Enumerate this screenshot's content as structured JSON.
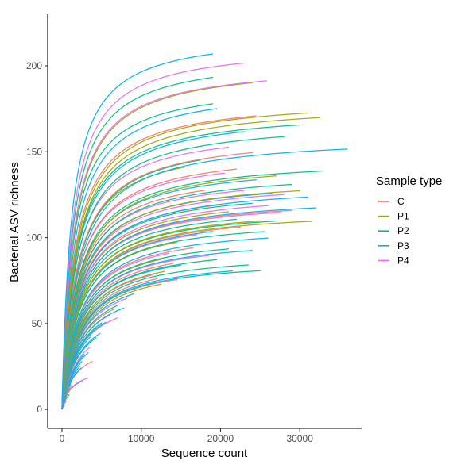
{
  "chart_data": {
    "type": "line",
    "title": "",
    "xlabel": "Sequence count",
    "ylabel": "Bacterial ASV richness",
    "xlim": [
      -1800,
      37800
    ],
    "ylim": [
      -11,
      230
    ],
    "x_ticks": [
      0,
      10000,
      20000,
      30000
    ],
    "x_tick_labels": [
      "0",
      "10000",
      "20000",
      "30000"
    ],
    "y_ticks": [
      0,
      50,
      100,
      150,
      200
    ],
    "y_tick_labels": [
      "0",
      "50",
      "100",
      "150",
      "200"
    ],
    "grid": false,
    "legend": {
      "title": "Sample type",
      "placement": "right",
      "entries": [
        {
          "label": "C",
          "color": "#F8766D"
        },
        {
          "label": "P1",
          "color": "#A3A500"
        },
        {
          "label": "P2",
          "color": "#00BF7D"
        },
        {
          "label": "P3",
          "color": "#00B0F6"
        },
        {
          "label": "P4",
          "color": "#E76BF3"
        }
      ]
    },
    "curve_model": "y = max_richness * x / (x + half_saturation_count)",
    "series": [
      {
        "group": "P3",
        "max_richness": 220,
        "half_saturation_count": 1200,
        "max_count": 19000
      },
      {
        "group": "P4",
        "max_richness": 213,
        "half_saturation_count": 1300,
        "max_count": 23000
      },
      {
        "group": "P2",
        "max_richness": 207,
        "half_saturation_count": 1350,
        "max_count": 19000
      },
      {
        "group": "P1",
        "max_richness": 202,
        "half_saturation_count": 1500,
        "max_count": 24000
      },
      {
        "group": "P4",
        "max_richness": 202,
        "half_saturation_count": 1450,
        "max_count": 25800
      },
      {
        "group": "P2",
        "max_richness": 191,
        "half_saturation_count": 1400,
        "max_count": 19000
      },
      {
        "group": "P3",
        "max_richness": 189,
        "half_saturation_count": 1550,
        "max_count": 19500
      },
      {
        "group": "C",
        "max_richness": 182,
        "half_saturation_count": 1600,
        "max_count": 24500
      },
      {
        "group": "P1",
        "max_richness": 182,
        "half_saturation_count": 1700,
        "max_count": 31000
      },
      {
        "group": "P1",
        "max_richness": 179,
        "half_saturation_count": 1750,
        "max_count": 32500
      },
      {
        "group": "P2",
        "max_richness": 175,
        "half_saturation_count": 1700,
        "max_count": 30000
      },
      {
        "group": "P3",
        "max_richness": 174,
        "half_saturation_count": 1750,
        "max_count": 23000
      },
      {
        "group": "P2",
        "max_richness": 169,
        "half_saturation_count": 1800,
        "max_count": 28000
      },
      {
        "group": "P4",
        "max_richness": 165,
        "half_saturation_count": 1700,
        "max_count": 21000
      },
      {
        "group": "P2",
        "max_richness": 161,
        "half_saturation_count": 1900,
        "max_count": 17500
      },
      {
        "group": "C",
        "max_richness": 161,
        "half_saturation_count": 1850,
        "max_count": 24000
      },
      {
        "group": "P3",
        "max_richness": 160,
        "half_saturation_count": 2000,
        "max_count": 36000
      },
      {
        "group": "P1",
        "max_richness": 157,
        "half_saturation_count": 1750,
        "max_count": 15500
      },
      {
        "group": "C",
        "max_richness": 152,
        "half_saturation_count": 1900,
        "max_count": 22000
      },
      {
        "group": "P4",
        "max_richness": 150,
        "half_saturation_count": 1850,
        "max_count": 20500
      },
      {
        "group": "P2",
        "max_richness": 147,
        "half_saturation_count": 1950,
        "max_count": 33000
      },
      {
        "group": "P1",
        "max_richness": 146,
        "half_saturation_count": 2000,
        "max_count": 27000
      },
      {
        "group": "P3",
        "max_richness": 144,
        "half_saturation_count": 1900,
        "max_count": 24500
      },
      {
        "group": "P2",
        "max_richness": 140,
        "half_saturation_count": 2000,
        "max_count": 29000
      },
      {
        "group": "C",
        "max_richness": 141,
        "half_saturation_count": 1900,
        "max_count": 18000
      },
      {
        "group": "P4",
        "max_richness": 138,
        "half_saturation_count": 1900,
        "max_count": 23000
      },
      {
        "group": "P1",
        "max_richness": 136,
        "half_saturation_count": 2050,
        "max_count": 30000
      },
      {
        "group": "P3",
        "max_richness": 135,
        "half_saturation_count": 1950,
        "max_count": 26500
      },
      {
        "group": "P4",
        "max_richness": 134,
        "half_saturation_count": 2000,
        "max_count": 28000
      },
      {
        "group": "C",
        "max_richness": 131,
        "half_saturation_count": 2000,
        "max_count": 20000
      },
      {
        "group": "P2",
        "max_richness": 130,
        "half_saturation_count": 2000,
        "max_count": 24000
      },
      {
        "group": "P3",
        "max_richness": 132,
        "half_saturation_count": 2100,
        "max_count": 31000
      },
      {
        "group": "P4",
        "max_richness": 128,
        "half_saturation_count": 2050,
        "max_count": 26000
      },
      {
        "group": "P1",
        "max_richness": 126,
        "half_saturation_count": 2000,
        "max_count": 21000
      },
      {
        "group": "P3",
        "max_richness": 125,
        "half_saturation_count": 2100,
        "max_count": 32000
      },
      {
        "group": "C",
        "max_richness": 124,
        "half_saturation_count": 2050,
        "max_count": 29000
      },
      {
        "group": "P4",
        "max_richness": 123,
        "half_saturation_count": 2000,
        "max_count": 27500
      },
      {
        "group": "P2",
        "max_richness": 121,
        "half_saturation_count": 2050,
        "max_count": 22000
      },
      {
        "group": "P1",
        "max_richness": 119,
        "half_saturation_count": 2100,
        "max_count": 25000
      },
      {
        "group": "P2",
        "max_richness": 118,
        "half_saturation_count": 2050,
        "max_count": 27000
      },
      {
        "group": "P1",
        "max_richness": 117,
        "half_saturation_count": 2150,
        "max_count": 31500
      },
      {
        "group": "C",
        "max_richness": 116,
        "half_saturation_count": 2100,
        "max_count": 22500
      },
      {
        "group": "P3",
        "max_richness": 115,
        "half_saturation_count": 2100,
        "max_count": 19000
      },
      {
        "group": "P4",
        "max_richness": 114,
        "half_saturation_count": 2050,
        "max_count": 17000
      },
      {
        "group": "P2",
        "max_richness": 112,
        "half_saturation_count": 2100,
        "max_count": 25500
      },
      {
        "group": "P1",
        "max_richness": 111,
        "half_saturation_count": 2050,
        "max_count": 14500
      },
      {
        "group": "P3",
        "max_richness": 108,
        "half_saturation_count": 2150,
        "max_count": 26000
      },
      {
        "group": "C",
        "max_richness": 106,
        "half_saturation_count": 2100,
        "max_count": 16500
      },
      {
        "group": "P4",
        "max_richness": 105,
        "half_saturation_count": 2100,
        "max_count": 13500
      },
      {
        "group": "P2",
        "max_richness": 103,
        "half_saturation_count": 2150,
        "max_count": 21000
      },
      {
        "group": "P1",
        "max_richness": 102,
        "half_saturation_count": 2100,
        "max_count": 12500
      },
      {
        "group": "P3",
        "max_richness": 101,
        "half_saturation_count": 2200,
        "max_count": 24000
      },
      {
        "group": "P4",
        "max_richness": 100,
        "half_saturation_count": 2150,
        "max_count": 18500
      },
      {
        "group": "C",
        "max_richness": 98,
        "half_saturation_count": 2150,
        "max_count": 14000
      },
      {
        "group": "P2",
        "max_richness": 97,
        "half_saturation_count": 2200,
        "max_count": 19500
      },
      {
        "group": "P3",
        "max_richness": 96,
        "half_saturation_count": 2150,
        "max_count": 15000
      },
      {
        "group": "P1",
        "max_richness": 94,
        "half_saturation_count": 2200,
        "max_count": 13000
      },
      {
        "group": "P4",
        "max_richness": 93,
        "half_saturation_count": 2150,
        "max_count": 11500
      },
      {
        "group": "P2",
        "max_richness": 92,
        "half_saturation_count": 2200,
        "max_count": 23500
      },
      {
        "group": "C",
        "max_richness": 90,
        "half_saturation_count": 2200,
        "max_count": 12000
      },
      {
        "group": "P3",
        "max_richness": 89,
        "half_saturation_count": 2250,
        "max_count": 21500
      },
      {
        "group": "P2",
        "max_richness": 88,
        "half_saturation_count": 2250,
        "max_count": 25000
      },
      {
        "group": "P4",
        "max_richness": 87,
        "half_saturation_count": 2200,
        "max_count": 14500
      },
      {
        "group": "P1",
        "max_richness": 86,
        "half_saturation_count": 2250,
        "max_count": 12500
      },
      {
        "group": "P3",
        "max_richness": 84,
        "half_saturation_count": 2250,
        "max_count": 9000
      },
      {
        "group": "P4",
        "max_richness": 82,
        "half_saturation_count": 2200,
        "max_count": 8200
      },
      {
        "group": "P2",
        "max_richness": 80,
        "half_saturation_count": 2250,
        "max_count": 7000
      },
      {
        "group": "C",
        "max_richness": 78,
        "half_saturation_count": 2200,
        "max_count": 6500
      },
      {
        "group": "P3",
        "max_richness": 76,
        "half_saturation_count": 2250,
        "max_count": 7800
      },
      {
        "group": "P4",
        "max_richness": 75,
        "half_saturation_count": 2200,
        "max_count": 6000
      },
      {
        "group": "P2",
        "max_richness": 73,
        "half_saturation_count": 2250,
        "max_count": 5000
      },
      {
        "group": "P3",
        "max_richness": 71,
        "half_saturation_count": 2200,
        "max_count": 5500
      },
      {
        "group": "P4",
        "max_richness": 70,
        "half_saturation_count": 2200,
        "max_count": 7000
      },
      {
        "group": "P3",
        "max_richness": 68,
        "half_saturation_count": 2200,
        "max_count": 3600
      },
      {
        "group": "P1",
        "max_richness": 66,
        "half_saturation_count": 2200,
        "max_count": 2000
      },
      {
        "group": "P3",
        "max_richness": 64,
        "half_saturation_count": 2150,
        "max_count": 4800
      },
      {
        "group": "P2",
        "max_richness": 62,
        "half_saturation_count": 2100,
        "max_count": 4300
      },
      {
        "group": "P4",
        "max_richness": 58,
        "half_saturation_count": 2100,
        "max_count": 3500
      },
      {
        "group": "P3",
        "max_richness": 55,
        "half_saturation_count": 2000,
        "max_count": 2800
      },
      {
        "group": "P3",
        "max_richness": 53,
        "half_saturation_count": 2000,
        "max_count": 3300
      },
      {
        "group": "P2",
        "max_richness": 52,
        "half_saturation_count": 1900,
        "max_count": 2000
      },
      {
        "group": "P3",
        "max_richness": 49,
        "half_saturation_count": 1900,
        "max_count": 2500
      },
      {
        "group": "P4",
        "max_richness": 47,
        "half_saturation_count": 1850,
        "max_count": 1500
      },
      {
        "group": "P3",
        "max_richness": 45,
        "half_saturation_count": 1800,
        "max_count": 2200
      },
      {
        "group": "P2",
        "max_richness": 43,
        "half_saturation_count": 1800,
        "max_count": 1300
      },
      {
        "group": "P3",
        "max_richness": 41,
        "half_saturation_count": 1700,
        "max_count": 2400
      },
      {
        "group": "C",
        "max_richness": 40,
        "half_saturation_count": 1650,
        "max_count": 3800
      },
      {
        "group": "P4",
        "max_richness": 38,
        "half_saturation_count": 1600,
        "max_count": 1200
      },
      {
        "group": "P3",
        "max_richness": 35,
        "half_saturation_count": 1500,
        "max_count": 1100
      },
      {
        "group": "P1",
        "max_richness": 30,
        "half_saturation_count": 1400,
        "max_count": 1200
      },
      {
        "group": "P1",
        "max_richness": 28,
        "half_saturation_count": 1300,
        "max_count": 1000
      },
      {
        "group": "P4",
        "max_richness": 25,
        "half_saturation_count": 1200,
        "max_count": 3300
      },
      {
        "group": "P3",
        "max_richness": 24,
        "half_saturation_count": 1150,
        "max_count": 2500
      },
      {
        "group": "P3",
        "max_richness": 18,
        "half_saturation_count": 1000,
        "max_count": 900
      },
      {
        "group": "P4",
        "max_richness": 12,
        "half_saturation_count": 800,
        "max_count": 500
      },
      {
        "group": "P3",
        "max_richness": 6,
        "half_saturation_count": 500,
        "max_count": 300
      }
    ]
  }
}
